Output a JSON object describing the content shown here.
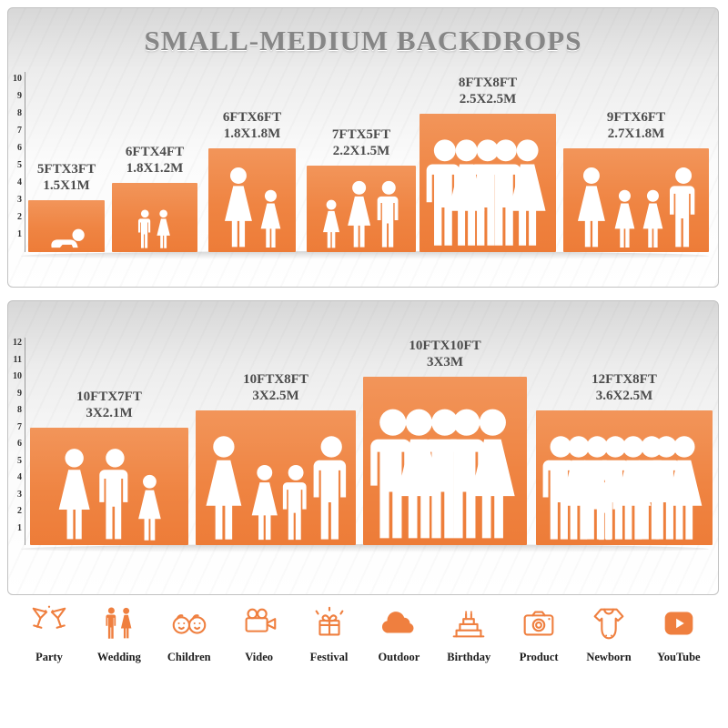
{
  "title": "SMALL-MEDIUM BACKDROPS",
  "colors": {
    "accent": "#EF8442",
    "icon": "#EF7F3F",
    "title_gray": "#868686"
  },
  "panel1": {
    "ruler": [
      "10",
      "9",
      "8",
      "7",
      "6",
      "5",
      "4",
      "3",
      "2",
      "1"
    ],
    "blocks": [
      {
        "ft": "5FTX3FT",
        "m": "1.5X1M",
        "units": 3,
        "figures": [
          "baby"
        ]
      },
      {
        "ft": "6FTX4FT",
        "m": "1.8X1.2M",
        "units": 4,
        "figures": [
          "boy",
          "girl"
        ]
      },
      {
        "ft": "6FTX6FT",
        "m": "1.8X1.8M",
        "units": 6,
        "figures": [
          "woman",
          "girl"
        ]
      },
      {
        "ft": "7FTX5FT",
        "m": "2.2X1.5M",
        "units": 5,
        "figures": [
          "girl",
          "woman",
          "man"
        ]
      },
      {
        "ft": "8FTX8FT",
        "m": "2.5X2.5M",
        "units": 8,
        "figures": [
          "man",
          "woman",
          "man",
          "man",
          "woman"
        ]
      },
      {
        "ft": "9FTX6FT",
        "m": "2.7X1.8M",
        "units": 6,
        "figures": [
          "woman",
          "girl",
          "girl",
          "man"
        ]
      }
    ]
  },
  "panel2": {
    "ruler": [
      "12",
      "11",
      "10",
      "9",
      "8",
      "7",
      "6",
      "5",
      "4",
      "3",
      "2",
      "1"
    ],
    "blocks": [
      {
        "ft": "10FTX7FT",
        "m": "3X2.1M",
        "units": 7,
        "figures": [
          "woman",
          "man",
          "girl"
        ]
      },
      {
        "ft": "10FTX8FT",
        "m": "3X2.5M",
        "units": 8,
        "figures": [
          "woman",
          "girl",
          "boy",
          "man"
        ]
      },
      {
        "ft": "10FTX10FT",
        "m": "3X3M",
        "units": 10,
        "figures": [
          "man",
          "woman",
          "man",
          "man",
          "woman"
        ]
      },
      {
        "ft": "12FTX8FT",
        "m": "3.6X2.5M",
        "units": 8,
        "figures": [
          "man",
          "woman",
          "man",
          "boy",
          "man",
          "woman",
          "man",
          "man",
          "woman"
        ]
      }
    ]
  },
  "categories": [
    {
      "label": "Party",
      "icon": "party-icon"
    },
    {
      "label": "Wedding",
      "icon": "wedding-icon"
    },
    {
      "label": "Children",
      "icon": "children-icon"
    },
    {
      "label": "Video",
      "icon": "video-icon"
    },
    {
      "label": "Festival",
      "icon": "festival-icon"
    },
    {
      "label": "Outdoor",
      "icon": "outdoor-icon"
    },
    {
      "label": "Birthday",
      "icon": "birthday-icon"
    },
    {
      "label": "Product",
      "icon": "product-icon"
    },
    {
      "label": "Newborn",
      "icon": "newborn-icon"
    },
    {
      "label": "YouTube",
      "icon": "youtube-icon"
    }
  ]
}
